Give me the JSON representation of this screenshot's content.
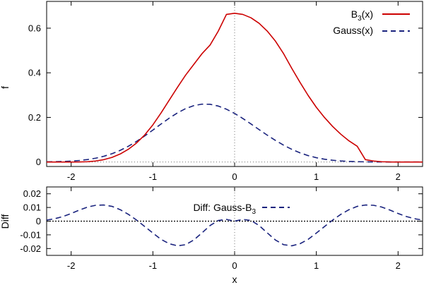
{
  "chart_data": [
    {
      "type": "line",
      "xlabel": "",
      "ylabel": "f",
      "xlim": [
        -2.3,
        2.3
      ],
      "ylim": [
        -0.02,
        0.72
      ],
      "x_ticks": [
        "-2",
        "-1",
        "0",
        "1",
        "2"
      ],
      "y_ticks": [
        "0",
        "0.2",
        "0.4",
        "0.6"
      ],
      "grid": false,
      "reference_lines": [
        {
          "axis": "x",
          "value": 0
        },
        {
          "axis": "y",
          "value": 0
        }
      ],
      "legend_position": "top-right",
      "colors": {
        "b3": "#cc0000",
        "gauss": "#1a237e"
      },
      "series": [
        {
          "name": "B3(x)",
          "legend_main": "B",
          "legend_sub": "3",
          "legend_suffix": "(x)",
          "style": "solid",
          "x": [
            -2.3,
            -2.2,
            -2.1,
            -2.0,
            -1.9,
            -1.8,
            -1.7,
            -1.6,
            -1.5,
            -1.4,
            -1.3,
            -1.2,
            -1.1,
            -1.0,
            -0.9,
            -0.8,
            -0.7,
            -0.6,
            -0.5,
            -0.4,
            -0.3,
            -0.2,
            -0.1,
            0.0,
            0.1,
            0.2,
            0.3,
            0.4,
            0.5,
            0.6,
            0.7,
            0.8,
            0.9,
            1.0,
            1.1,
            1.2,
            1.3,
            1.4,
            1.5,
            1.6,
            1.7,
            1.8,
            1.9,
            2.0,
            2.1,
            2.2,
            2.3
          ],
          "y": [
            0.0,
            0.0,
            0.0,
            0.0,
            0.0002,
            0.0013,
            0.0045,
            0.0107,
            0.0208,
            0.036,
            0.0572,
            0.0853,
            0.1215,
            0.1667,
            0.2202,
            0.2773,
            0.3345,
            0.3893,
            0.4375,
            0.4853,
            0.5245,
            0.5867,
            0.6617,
            0.6667,
            0.6617,
            0.6467,
            0.6217,
            0.5867,
            0.5417,
            0.4853,
            0.4195,
            0.3573,
            0.2982,
            0.2453,
            0.1995,
            0.1593,
            0.1245,
            0.0947,
            0.0708,
            0.0107,
            0.0045,
            0.0013,
            0.0002,
            0.0,
            0.0,
            0.0,
            0.0
          ]
        },
        {
          "name": "Gauss(x)",
          "style": "dashed",
          "x": [
            -2.3,
            -2.2,
            -2.1,
            -2.0,
            -1.9,
            -1.8,
            -1.7,
            -1.6,
            -1.5,
            -1.4,
            -1.3,
            -1.2,
            -1.1,
            -1.0,
            -0.9,
            -0.8,
            -0.7,
            -0.6,
            -0.5,
            -0.4,
            -0.3,
            -0.2,
            -0.1,
            0.0,
            0.1,
            0.2,
            0.3,
            0.4,
            0.5,
            0.6,
            0.7,
            0.8,
            0.9,
            1.0,
            1.1,
            1.2,
            1.3,
            1.4,
            1.5,
            1.6,
            1.7,
            1.8,
            1.9,
            2.0,
            2.1,
            2.2,
            2.3
          ],
          "y": [
            0.0007,
            0.0013,
            0.0024,
            0.0041,
            0.0069,
            0.0111,
            0.0172,
            0.0258,
            0.0374,
            0.0523,
            0.0707,
            0.0924,
            0.1169,
            0.1433,
            0.1704,
            0.1966,
            0.2201,
            0.2393,
            0.2528,
            0.2595,
            0.2588,
            0.2509,
            0.2368,
            0.2178,
            0.1953,
            0.1707,
            0.1453,
            0.1203,
            0.0968,
            0.0754,
            0.0568,
            0.0413,
            0.0288,
            0.0194,
            0.0126,
            0.0079,
            0.0047,
            0.0027,
            0.0015,
            0.0008,
            0.0004,
            0.0002,
            0.0001,
            0.0,
            0.0,
            0.0,
            0.0
          ]
        }
      ]
    },
    {
      "type": "line",
      "xlabel": "x",
      "ylabel": "Diff",
      "xlim": [
        -2.3,
        2.3
      ],
      "ylim": [
        -0.025,
        0.025
      ],
      "x_ticks": [
        "-2",
        "-1",
        "0",
        "1",
        "2"
      ],
      "y_ticks": [
        "-0.02",
        "-0.01",
        "0",
        "0.01",
        "0.02"
      ],
      "grid": false,
      "reference_lines": [
        {
          "axis": "y",
          "value": 0
        },
        {
          "axis": "x",
          "value": 0
        }
      ],
      "legend_position": "top-center",
      "colors": {
        "diff": "#1a237e"
      },
      "series": [
        {
          "name": "Diff: Gauss-B3",
          "legend_main": "Diff: Gauss-B",
          "legend_sub": "3",
          "legend_suffix": "",
          "style": "dashed",
          "x": [
            -2.3,
            -2.2,
            -2.1,
            -2.0,
            -1.9,
            -1.8,
            -1.7,
            -1.6,
            -1.5,
            -1.4,
            -1.3,
            -1.2,
            -1.1,
            -1.0,
            -0.9,
            -0.8,
            -0.7,
            -0.6,
            -0.5,
            -0.4,
            -0.3,
            -0.2,
            -0.1,
            0.0,
            0.1,
            0.2,
            0.3,
            0.4,
            0.5,
            0.6,
            0.7,
            0.8,
            0.9,
            1.0,
            1.1,
            1.2,
            1.3,
            1.4,
            1.5,
            1.6,
            1.7,
            1.8,
            1.9,
            2.0,
            2.1,
            2.2,
            2.3
          ],
          "y": [
            0.0008,
            0.0018,
            0.0034,
            0.0056,
            0.0081,
            0.0103,
            0.0116,
            0.0118,
            0.0108,
            0.0084,
            0.005,
            0.0008,
            -0.0039,
            -0.0087,
            -0.0133,
            -0.0165,
            -0.018,
            -0.0172,
            -0.0138,
            -0.0086,
            -0.0032,
            0.0005,
            0.0013,
            0.0,
            0.0013,
            0.0005,
            -0.0032,
            -0.0086,
            -0.0138,
            -0.0172,
            -0.018,
            -0.0165,
            -0.0133,
            -0.0087,
            -0.0039,
            0.0008,
            0.005,
            0.0084,
            0.0108,
            0.0118,
            0.0116,
            0.0103,
            0.0081,
            0.0056,
            0.0034,
            0.0018,
            0.0008
          ]
        }
      ]
    }
  ]
}
